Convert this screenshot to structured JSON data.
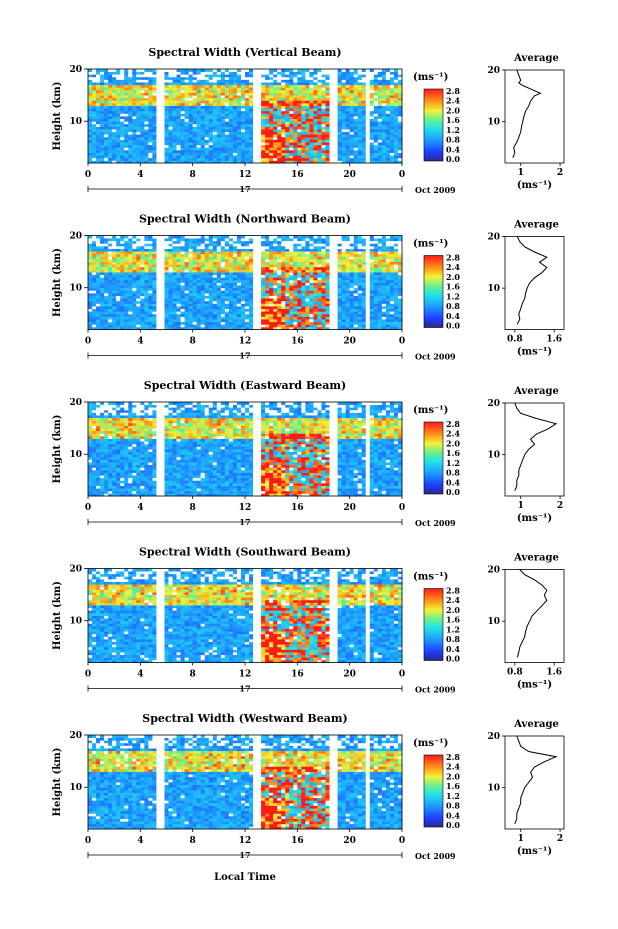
{
  "figure": {
    "xlabel": "Local Time",
    "date_label": "Oct 2009",
    "day_label": "17",
    "unit_label": "(ms⁻¹)",
    "colorbar_ticks": [
      "2.8",
      "2.4",
      "2.0",
      "1.6",
      "1.2",
      "0.8",
      "0.4",
      "0.0"
    ],
    "colors": {
      "background": "#1f3fcf",
      "high": "#ff2a1a",
      "mid": "#33c8d8",
      "gap": "#ffffff"
    }
  },
  "chart_data": [
    {
      "type": "heatmap",
      "title": "Spectral Width (Vertical Beam)",
      "ylabel": "Height (km)",
      "xlim": [
        0,
        24
      ],
      "ylim": [
        2,
        20
      ],
      "x_ticks": [
        "0",
        "4",
        "8",
        "12",
        "16",
        "20",
        "0"
      ],
      "y_ticks": [
        "10",
        "20"
      ],
      "data_gaps_hours": [
        [
          5.3,
          5.7
        ],
        [
          12.7,
          13.2
        ],
        [
          18.6,
          19.0
        ],
        [
          21.2,
          21.6
        ]
      ],
      "zlim": [
        0,
        2.8
      ],
      "average_profile": {
        "title": "Average",
        "xlabel": "(ms⁻¹)",
        "x_ticks": [
          "1",
          "2"
        ],
        "xlim": [
          0.6,
          2.1
        ],
        "heights": [
          3,
          4,
          5,
          6,
          7,
          8,
          9,
          10,
          11,
          12,
          13,
          14,
          15,
          15.5,
          16,
          16.5,
          17,
          17.5,
          18,
          19,
          20
        ],
        "values": [
          0.8,
          0.85,
          0.82,
          0.9,
          0.95,
          1.0,
          1.02,
          1.05,
          1.08,
          1.12,
          1.2,
          1.25,
          1.35,
          1.5,
          1.35,
          1.2,
          1.05,
          0.95,
          1.0,
          0.95,
          0.9
        ]
      }
    },
    {
      "type": "heatmap",
      "title": "Spectral Width (Northward Beam)",
      "ylabel": "Height (km)",
      "xlim": [
        0,
        24
      ],
      "ylim": [
        2,
        20
      ],
      "x_ticks": [
        "0",
        "4",
        "8",
        "12",
        "16",
        "20",
        "0"
      ],
      "y_ticks": [
        "10",
        "20"
      ],
      "data_gaps_hours": [
        [
          5.3,
          5.7
        ],
        [
          12.7,
          13.2
        ],
        [
          18.6,
          19.0
        ],
        [
          21.2,
          21.6
        ]
      ],
      "zlim": [
        0,
        2.8
      ],
      "average_profile": {
        "title": "Average",
        "xlabel": "(ms⁻¹)",
        "x_ticks": [
          "0.8",
          "1.6"
        ],
        "xlim": [
          0.6,
          1.8
        ],
        "heights": [
          3,
          4,
          5,
          6,
          7,
          8,
          9,
          10,
          11,
          12,
          13,
          14,
          15,
          16,
          17,
          18,
          19,
          20
        ],
        "values": [
          0.85,
          0.9,
          0.88,
          0.92,
          0.95,
          1.0,
          1.02,
          1.05,
          1.1,
          1.2,
          1.35,
          1.45,
          1.3,
          1.45,
          1.2,
          1.0,
          0.9,
          0.85
        ]
      }
    },
    {
      "type": "heatmap",
      "title": "Spectral Width (Eastward Beam)",
      "ylabel": "Height (km)",
      "xlim": [
        0,
        24
      ],
      "ylim": [
        2,
        20
      ],
      "x_ticks": [
        "0",
        "4",
        "8",
        "12",
        "16",
        "20",
        "0"
      ],
      "y_ticks": [
        "10",
        "20"
      ],
      "data_gaps_hours": [
        [
          5.3,
          5.7
        ],
        [
          12.7,
          13.2
        ],
        [
          18.6,
          19.0
        ],
        [
          21.2,
          21.6
        ]
      ],
      "zlim": [
        0,
        2.8
      ],
      "average_profile": {
        "title": "Average",
        "xlabel": "(ms⁻¹)",
        "x_ticks": [
          "1",
          "2"
        ],
        "xlim": [
          0.6,
          2.1
        ],
        "heights": [
          3,
          4,
          5,
          6,
          7,
          8,
          9,
          10,
          11,
          12,
          13,
          14,
          15,
          16,
          17,
          18,
          19,
          20
        ],
        "values": [
          0.85,
          0.9,
          0.9,
          0.95,
          0.95,
          1.0,
          1.05,
          1.1,
          1.2,
          1.35,
          1.25,
          1.4,
          1.7,
          1.9,
          1.4,
          1.0,
          0.9,
          0.85
        ]
      }
    },
    {
      "type": "heatmap",
      "title": "Spectral Width (Southward Beam)",
      "ylabel": "Height (km)",
      "xlim": [
        0,
        24
      ],
      "ylim": [
        2,
        20
      ],
      "x_ticks": [
        "0",
        "4",
        "8",
        "12",
        "16",
        "20",
        "0"
      ],
      "y_ticks": [
        "10",
        "20"
      ],
      "data_gaps_hours": [
        [
          5.3,
          5.7
        ],
        [
          12.7,
          13.2
        ],
        [
          18.6,
          19.0
        ],
        [
          21.2,
          21.6
        ]
      ],
      "zlim": [
        0,
        2.8
      ],
      "average_profile": {
        "title": "Average",
        "xlabel": "(ms⁻¹)",
        "x_ticks": [
          "0.8",
          "1.6"
        ],
        "xlim": [
          0.6,
          1.8
        ],
        "heights": [
          3,
          4,
          5,
          6,
          7,
          8,
          9,
          10,
          11,
          12,
          13,
          14,
          15,
          16,
          17,
          18,
          19,
          20
        ],
        "values": [
          0.85,
          0.88,
          0.9,
          0.95,
          1.0,
          1.02,
          1.05,
          1.1,
          1.15,
          1.25,
          1.35,
          1.45,
          1.4,
          1.45,
          1.35,
          1.2,
          1.0,
          0.9
        ]
      }
    },
    {
      "type": "heatmap",
      "title": "Spectral Width (Westward Beam)",
      "ylabel": "Height (km)",
      "xlim": [
        0,
        24
      ],
      "ylim": [
        2,
        20
      ],
      "x_ticks": [
        "0",
        "4",
        "8",
        "12",
        "16",
        "20",
        "0"
      ],
      "y_ticks": [
        "10",
        "20"
      ],
      "data_gaps_hours": [
        [
          5.3,
          5.7
        ],
        [
          12.7,
          13.2
        ],
        [
          18.6,
          19.0
        ],
        [
          21.2,
          21.6
        ]
      ],
      "zlim": [
        0,
        2.8
      ],
      "average_profile": {
        "title": "Average",
        "xlabel": "(ms⁻¹)",
        "x_ticks": [
          "1",
          "2"
        ],
        "xlim": [
          0.6,
          2.1
        ],
        "heights": [
          3,
          4,
          5,
          6,
          7,
          8,
          9,
          10,
          11,
          12,
          13,
          14,
          15,
          16,
          17,
          18,
          19,
          20
        ],
        "values": [
          0.85,
          0.9,
          0.9,
          0.95,
          1.0,
          1.0,
          1.05,
          1.1,
          1.2,
          1.3,
          1.25,
          1.35,
          1.6,
          1.9,
          1.2,
          1.0,
          0.95,
          0.9
        ]
      }
    }
  ]
}
